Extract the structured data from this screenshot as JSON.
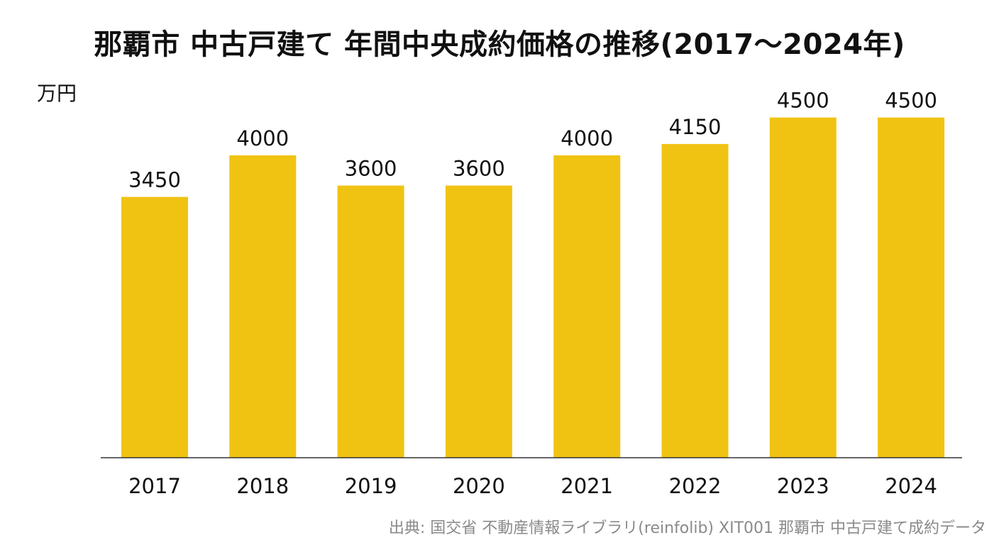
{
  "chart_data": {
    "type": "bar",
    "title": "那覇市 中古戸建て 年間中央成約価格の推移(2017〜2024年)",
    "ylabel": "万円",
    "xlabel": "",
    "categories": [
      "2017",
      "2018",
      "2019",
      "2020",
      "2021",
      "2022",
      "2023",
      "2024"
    ],
    "values": [
      3450,
      4000,
      3600,
      3600,
      4000,
      4150,
      4500,
      4500
    ],
    "ylim": [
      0,
      5050
    ],
    "bar_color": "#F0C313",
    "axis_color": "#333333",
    "grid": false,
    "legend": "none",
    "data_labels": true
  },
  "source": "出典: 国交省 不動産情報ライブラリ(reinfolib) XIT001 那覇市 中古戸建て成約データ"
}
